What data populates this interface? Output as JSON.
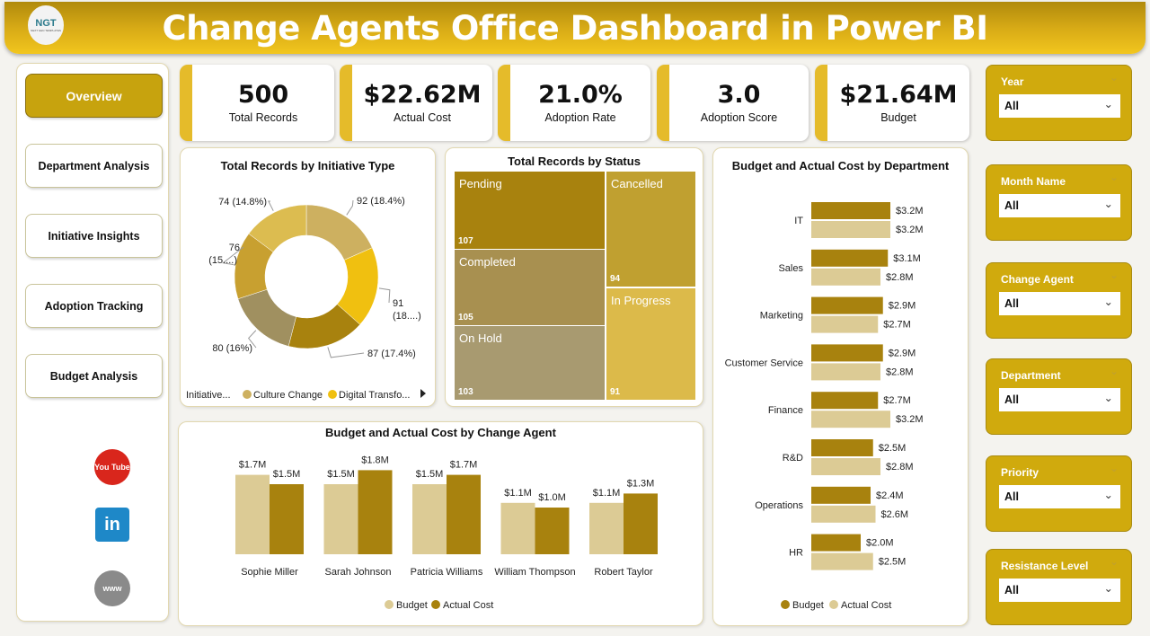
{
  "header": {
    "title": "Change Agents Office Dashboard in Power BI",
    "logo_text": "NGT",
    "logo_sub": "NEXT GEN TEMPLATES"
  },
  "nav": {
    "items": [
      {
        "label": "Overview",
        "active": true
      },
      {
        "label": "Department Analysis"
      },
      {
        "label": "Initiative Insights"
      },
      {
        "label": "Adoption Tracking"
      },
      {
        "label": "Budget Analysis"
      }
    ],
    "social": [
      {
        "name": "youtube-icon",
        "text": "You Tube",
        "color": "#d9261c"
      },
      {
        "name": "linkedin-icon",
        "text": "in",
        "color": "#1e88c8"
      },
      {
        "name": "globe-icon",
        "text": "www",
        "color": "#8a8a8a"
      }
    ]
  },
  "kpis": [
    {
      "value": "500",
      "label": "Total Records"
    },
    {
      "value": "$22.62M",
      "label": "Actual Cost"
    },
    {
      "value": "21.0%",
      "label": "Adoption Rate"
    },
    {
      "value": "3.0",
      "label": "Adoption Score"
    },
    {
      "value": "$21.64M",
      "label": "Budget"
    }
  ],
  "slicers": [
    {
      "label": "Year",
      "value": "All"
    },
    {
      "label": "Month Name",
      "value": "All"
    },
    {
      "label": "Change Agent",
      "value": "All"
    },
    {
      "label": "Department",
      "value": "All"
    },
    {
      "label": "Priority",
      "value": "All"
    },
    {
      "label": "Resistance Level",
      "value": "All"
    }
  ],
  "colors": {
    "accent": "#d0aa0d",
    "budget": "#dccb95",
    "actual": "#a8820e"
  },
  "chart_data": [
    {
      "type": "pie",
      "title": "Total Records by Initiative Type",
      "donut": true,
      "values": [
        92,
        91,
        87,
        80,
        76,
        74
      ],
      "labels": [
        "92 (18.4%)",
        "91 (18....)",
        "87 (17.4%)",
        "80 (16%)",
        "76 (15....)",
        "74 (14.8%)"
      ],
      "colors": [
        "#cdb060",
        "#f0c010",
        "#a8820e",
        "#a09060",
        "#c8a030",
        "#dcbc50"
      ],
      "legend": {
        "title": "Initiative...",
        "entries": [
          "Culture Change",
          "Digital Transfo..."
        ],
        "colors": [
          "#cdb060",
          "#f0c010"
        ],
        "position": "bottom"
      }
    },
    {
      "type": "treemap",
      "title": "Total Records by Status",
      "items": [
        {
          "label": "Pending",
          "value": 107,
          "color": "#a8820e"
        },
        {
          "label": "Completed",
          "value": 105,
          "color": "#a89050"
        },
        {
          "label": "On Hold",
          "value": 103,
          "color": "#a89a70"
        },
        {
          "label": "Cancelled",
          "value": 94,
          "color": "#c0a030"
        },
        {
          "label": "In Progress",
          "value": 91,
          "color": "#dcba4a"
        }
      ]
    },
    {
      "type": "bar",
      "orientation": "horizontal",
      "title": "Budget and Actual Cost by Department",
      "categories": [
        "IT",
        "Sales",
        "Marketing",
        "Customer Service",
        "Finance",
        "R&D",
        "Operations",
        "HR"
      ],
      "series": [
        {
          "name": "Budget",
          "values": [
            3.2,
            3.1,
            2.9,
            2.9,
            2.7,
            2.5,
            2.4,
            2.0
          ],
          "labels": [
            "$3.2M",
            "$3.1M",
            "$2.9M",
            "$2.9M",
            "$2.7M",
            "$2.5M",
            "$2.4M",
            "$2.0M"
          ],
          "color": "#a8820e"
        },
        {
          "name": "Actual Cost",
          "values": [
            3.2,
            2.8,
            2.7,
            2.8,
            3.2,
            2.8,
            2.6,
            2.5
          ],
          "labels": [
            "$3.2M",
            "$2.8M",
            "$2.7M",
            "$2.8M",
            "$3.2M",
            "$2.8M",
            "$2.6M",
            "$2.5M"
          ],
          "color": "#dccb95"
        }
      ],
      "legend": {
        "position": "bottom",
        "entries": [
          "Budget",
          "Actual Cost"
        ],
        "colors": [
          "#a8820e",
          "#dccb95"
        ]
      }
    },
    {
      "type": "bar",
      "orientation": "vertical",
      "title": "Budget and Actual Cost by Change Agent",
      "categories": [
        "Sophie Miller",
        "Sarah Johnson",
        "Patricia Williams",
        "William Thompson",
        "Robert Taylor"
      ],
      "series": [
        {
          "name": "Budget",
          "values": [
            1.7,
            1.5,
            1.5,
            1.1,
            1.1
          ],
          "labels": [
            "$1.7M",
            "$1.5M",
            "$1.5M",
            "$1.1M",
            "$1.1M"
          ],
          "color": "#dccb95"
        },
        {
          "name": "Actual Cost",
          "values": [
            1.5,
            1.8,
            1.7,
            1.0,
            1.3
          ],
          "labels": [
            "$1.5M",
            "$1.8M",
            "$1.7M",
            "$1.0M",
            "$1.3M"
          ],
          "color": "#a8820e"
        }
      ],
      "legend": {
        "position": "bottom",
        "entries": [
          "Budget",
          "Actual Cost"
        ],
        "colors": [
          "#dccb95",
          "#a8820e"
        ]
      }
    }
  ]
}
